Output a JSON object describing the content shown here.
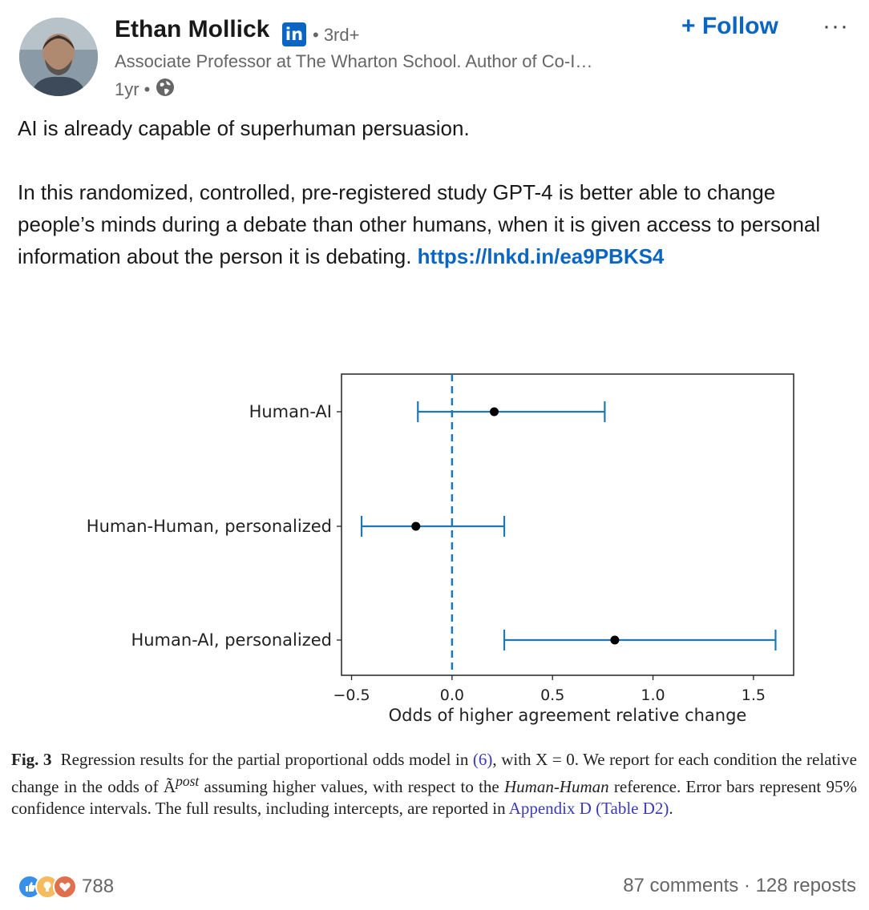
{
  "post": {
    "author": {
      "name": "Ethan Mollick",
      "degree": "• 3rd+",
      "headline": "Associate Professor at The Wharton School. Author of Co-I…",
      "age": "1yr •"
    },
    "follow_label": "+ Follow",
    "more_label": "···",
    "text": {
      "line1": "AI is already capable of superhuman persuasion.",
      "paragraph2": "In this randomized, controlled, pre-registered study GPT-4 is better able to change people’s minds during a debate than other humans, when it is given access to personal information about the person it is debating.",
      "link": "https://lnkd.in/ea9PBKS4"
    },
    "caption": {
      "fig_label": "Fig. 3",
      "part1": "Regression results for the partial proportional odds model in ",
      "eq_ref": "(6)",
      "part2": ", with X = 0. We report for each condition the relative change in the odds of Ã",
      "superscript": "post",
      "part3": " assuming higher values, with respect to the ",
      "reference_name": "Human-Human",
      "part4": " reference. Error bars represent 95% confidence intervals. The full results, including intercepts, are reported in ",
      "appendix_ref": "Appendix D",
      "table_ref": "(Table D2)",
      "end": "."
    },
    "footer": {
      "reaction_count": "788",
      "comments_reposts": "87 comments · 128 reposts"
    }
  },
  "colors": {
    "linkedin_blue": "#0a66c2",
    "errorbar": "#1f77b4",
    "text_secondary": "#666666"
  },
  "chart_data": {
    "type": "scatter",
    "title": "",
    "xlabel": "Odds of higher agreement relative change",
    "ylabel": "",
    "xlim": [
      -0.55,
      1.7
    ],
    "xticks": [
      -0.5,
      0.0,
      0.5,
      1.0,
      1.5
    ],
    "xtick_labels": [
      "−0.5",
      "0.0",
      "0.5",
      "1.0",
      "1.5"
    ],
    "reference_line_x": 0.0,
    "categories": [
      "Human-AI",
      "Human-Human, personalized",
      "Human-AI, personalized"
    ],
    "estimates": [
      0.21,
      -0.18,
      0.81
    ],
    "ci_low": [
      -0.17,
      -0.45,
      0.26
    ],
    "ci_high": [
      0.76,
      0.26,
      1.61
    ],
    "grid": false
  }
}
